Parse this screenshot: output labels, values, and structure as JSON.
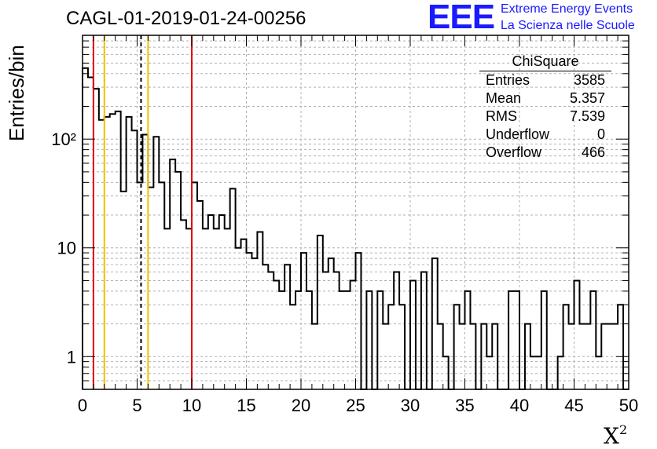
{
  "title": "CAGL-01-2019-01-24-00256",
  "logo": {
    "text": "EEE",
    "line1": "Extreme Energy Events",
    "line2": "La Scienza nelle Scuole"
  },
  "stats": {
    "title": "ChiSquare",
    "rows": [
      {
        "label": "Entries",
        "value": "3585"
      },
      {
        "label": "Mean",
        "value": "5.357"
      },
      {
        "label": "RMS",
        "value": "7.539"
      },
      {
        "label": "Underflow",
        "value": "0"
      },
      {
        "label": "Overflow",
        "value": "466"
      }
    ]
  },
  "chart_data": {
    "type": "bar",
    "histogram": "step",
    "title": "CAGL-01-2019-01-24-00256",
    "xlabel": "X²",
    "ylabel": "Entries/bin",
    "xlim": [
      0,
      50
    ],
    "ylim": [
      0.5,
      900
    ],
    "yscale": "log",
    "grid": true,
    "bin_width": 0.5,
    "x_ticks": [
      "0",
      "5",
      "10",
      "15",
      "20",
      "25",
      "30",
      "35",
      "40",
      "45",
      "50"
    ],
    "y_ticks": [
      {
        "value": 1,
        "label": "1"
      },
      {
        "value": 10,
        "label": "10"
      },
      {
        "value": 100,
        "label": "10²"
      }
    ],
    "bin_values": [
      450,
      370,
      290,
      150,
      160,
      170,
      180,
      33,
      160,
      120,
      40,
      110,
      36,
      105,
      40,
      15,
      65,
      50,
      18,
      15,
      40,
      27,
      15,
      20,
      15,
      20,
      15,
      35,
      10,
      12,
      9,
      8,
      14,
      7,
      6,
      5,
      4,
      7,
      3,
      4,
      9,
      4,
      2,
      13,
      6,
      8,
      6,
      4,
      4,
      5,
      9,
      0,
      4,
      0,
      4,
      2,
      3,
      6,
      3,
      0,
      5,
      0,
      6,
      0,
      8,
      2,
      1,
      0,
      3,
      2,
      4,
      2,
      0,
      2,
      1,
      2,
      0,
      0,
      4,
      4,
      0,
      2,
      1,
      1,
      4,
      0,
      0,
      1,
      3,
      2,
      5,
      2,
      2,
      4,
      1,
      2,
      2,
      2,
      3,
      0
    ],
    "vertical_lines": [
      {
        "x": 1.0,
        "color": "#e00000",
        "style": "solid"
      },
      {
        "x": 2.0,
        "color": "#f0c000",
        "style": "solid"
      },
      {
        "x": 5.357,
        "color": "#000000",
        "style": "dashed"
      },
      {
        "x": 6.0,
        "color": "#f0c000",
        "style": "solid"
      },
      {
        "x": 10.0,
        "color": "#e00000",
        "style": "solid"
      }
    ]
  }
}
